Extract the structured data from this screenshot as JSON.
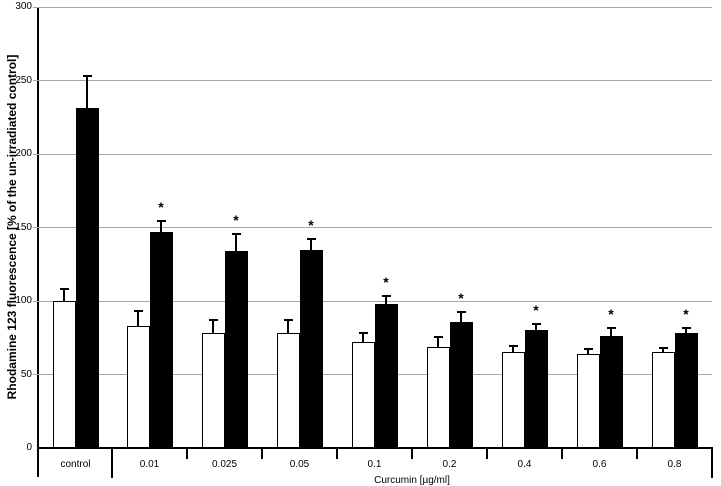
{
  "chart_data": {
    "type": "bar",
    "title": "",
    "ylabel": "Rhodamine 123 fluorescence [% of the un-irradiated control]",
    "xlabel": "Curcumin [µg/ml]",
    "categories": [
      "control",
      "0.01",
      "0.025",
      "0.05",
      "0.1",
      "0.2",
      "0.4",
      "0.6",
      "0.8"
    ],
    "series": [
      {
        "name": "open (white) bars",
        "fill": "#ffffff",
        "values": [
          100,
          83,
          78,
          78,
          72,
          69,
          65,
          64,
          65
        ],
        "errors": [
          9,
          11,
          10,
          10,
          7,
          7,
          5,
          4,
          4
        ],
        "significant": [
          false,
          false,
          false,
          false,
          false,
          false,
          false,
          false,
          false
        ]
      },
      {
        "name": "filled (black) bars",
        "fill": "#000000",
        "values": [
          231,
          147,
          134,
          135,
          98,
          86,
          80,
          76,
          78
        ],
        "errors": [
          23,
          8,
          12,
          8,
          6,
          7,
          5,
          6,
          4
        ],
        "significant": [
          false,
          true,
          true,
          true,
          true,
          true,
          true,
          true,
          true
        ]
      }
    ],
    "ylim": [
      0,
      300
    ],
    "yticks": [
      0,
      50,
      100,
      150,
      200,
      250,
      300
    ],
    "grid": true,
    "gridcolor": "#a6a6a6",
    "axis_color": "#000000",
    "background": "#ffffff",
    "significance_marker": "*",
    "error_bars": "upper only, with caps",
    "legend_position": "none"
  }
}
